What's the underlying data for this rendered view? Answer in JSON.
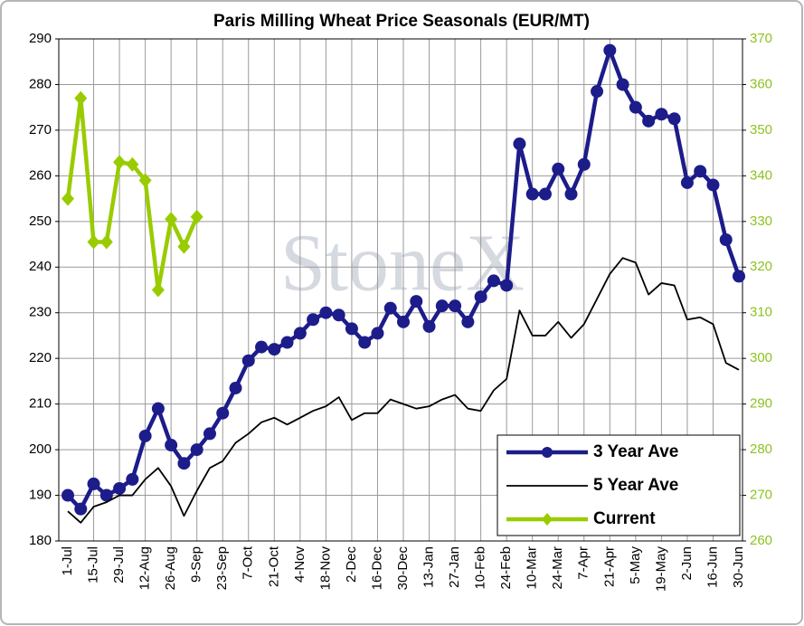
{
  "chart_data": {
    "type": "line",
    "title": "Paris Milling Wheat Price Seasonals (EUR/MT)",
    "watermark": "StoneX",
    "categories": [
      "1-Jul",
      null,
      "15-Jul",
      null,
      "29-Jul",
      null,
      "12-Aug",
      null,
      "26-Aug",
      null,
      "9-Sep",
      null,
      "23-Sep",
      null,
      "7-Oct",
      null,
      "21-Oct",
      null,
      "4-Nov",
      null,
      "18-Nov",
      null,
      "2-Dec",
      null,
      "16-Dec",
      null,
      "30-Dec",
      null,
      "13-Jan",
      null,
      "27-Jan",
      null,
      "10-Feb",
      null,
      "24-Feb",
      null,
      "10-Mar",
      null,
      "24-Mar",
      null,
      "7-Apr",
      null,
      "21-Apr",
      null,
      "5-May",
      null,
      "19-May",
      null,
      "2-Jun",
      null,
      "16-Jun",
      null,
      "30-Jun"
    ],
    "series": [
      {
        "name": "3 Year Ave",
        "color": "#1c1c8a",
        "marker": "circle",
        "values": [
          190,
          187,
          192.5,
          190,
          191.5,
          193.5,
          203,
          209,
          201,
          197,
          200,
          203.5,
          208,
          213.5,
          219.5,
          222.5,
          222,
          223.5,
          225.5,
          228.5,
          230,
          229.5,
          226.5,
          223.5,
          225.5,
          231,
          228,
          232.5,
          227,
          231.5,
          231.5,
          228,
          233.5,
          237,
          236,
          267,
          256,
          256,
          261.5,
          256,
          262.5,
          278.5,
          287.5,
          280,
          275,
          272,
          273.5,
          272.5,
          258.5,
          261,
          258,
          246,
          238
        ]
      },
      {
        "name": "5 Year Ave",
        "color": "#000000",
        "marker": "none",
        "values": [
          186.5,
          184,
          187.5,
          188.5,
          190,
          190,
          193.5,
          196,
          192,
          185.5,
          191,
          196,
          197.5,
          201.5,
          203.5,
          206,
          207,
          205.5,
          207,
          208.5,
          209.5,
          211.5,
          206.5,
          208,
          208,
          211,
          210,
          209,
          209.5,
          211,
          212,
          209,
          208.5,
          213,
          215.5,
          230.5,
          225,
          225,
          228,
          224.5,
          227.5,
          233,
          238.5,
          242,
          241,
          234,
          236.5,
          236,
          228.5,
          229,
          227.5,
          219,
          217.5
        ]
      },
      {
        "name": "Current",
        "color": "#99cc00",
        "marker": "diamond",
        "axis": "y2",
        "values": [
          335,
          357,
          325.5,
          325.5,
          343,
          342.5,
          339,
          315,
          330.5,
          324.5,
          331,
          null,
          null,
          null,
          null,
          null,
          null,
          null,
          null,
          null,
          null,
          null,
          null,
          null,
          null,
          null,
          null,
          null,
          null,
          null,
          null,
          null,
          null,
          null,
          null,
          null,
          null,
          null,
          null,
          null,
          null,
          null,
          null,
          null,
          null,
          null,
          null,
          null,
          null,
          null,
          null,
          null,
          null
        ]
      }
    ],
    "ylim": [
      180,
      290
    ],
    "yticks": [
      180,
      190,
      200,
      210,
      220,
      230,
      240,
      250,
      260,
      270,
      280,
      290
    ],
    "y2lim": [
      260,
      370
    ],
    "y2ticks": [
      260,
      270,
      280,
      290,
      300,
      310,
      320,
      330,
      340,
      350,
      360,
      370
    ],
    "y2color": "#8dc21f",
    "grid": true,
    "legend": "lower right"
  }
}
